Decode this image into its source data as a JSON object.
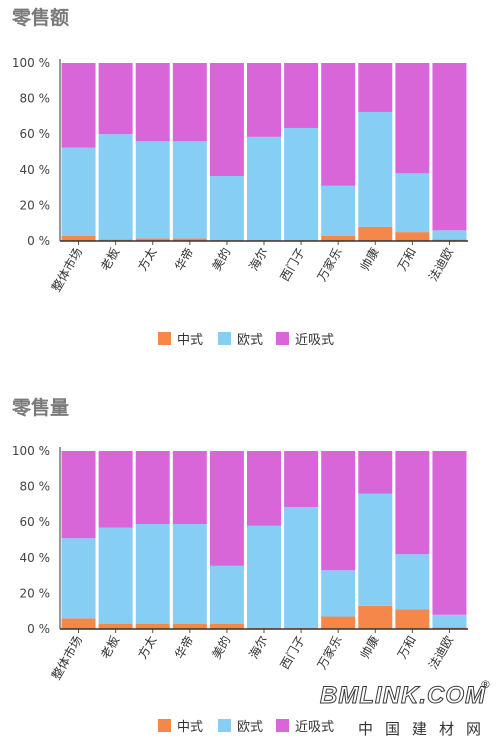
{
  "colors": {
    "zhongshi": "#F5874A",
    "oushi": "#87CEF5",
    "jinxishi": "#D866D8"
  },
  "watermark": {
    "logo": "BMLINK.COM",
    "registered": "®",
    "subtitle": "中国建材网"
  },
  "chart_data": [
    {
      "type": "bar",
      "stacked": true,
      "title": "零售额",
      "xlabel": "",
      "ylabel": "",
      "ylim": [
        0,
        100
      ],
      "yticks": [
        "0 %",
        "20 %",
        "40 %",
        "60 %",
        "80 %",
        "100 %"
      ],
      "categories": [
        "整体市场",
        "老板",
        "方太",
        "华帝",
        "美的",
        "海尔",
        "西门子",
        "万家乐",
        "帅康",
        "万和",
        "法迪欧"
      ],
      "legend_position": "bottom",
      "series": [
        {
          "name": "中式",
          "color": "#F5874A",
          "values": [
            3,
            1,
            1.5,
            1.5,
            0.5,
            0.5,
            0.5,
            3,
            8,
            5,
            1
          ]
        },
        {
          "name": "欧式",
          "color": "#87CEF5",
          "values": [
            49.5,
            59,
            54.5,
            54.5,
            36,
            58,
            63,
            28,
            64.5,
            33,
            5
          ]
        },
        {
          "name": "近吸式",
          "color": "#D866D8",
          "values": [
            47.5,
            40,
            44,
            44,
            63.5,
            41.5,
            36.5,
            69,
            27.5,
            62,
            94
          ]
        }
      ]
    },
    {
      "type": "bar",
      "stacked": true,
      "title": "零售量",
      "xlabel": "",
      "ylabel": "",
      "ylim": [
        0,
        100
      ],
      "yticks": [
        "0 %",
        "20 %",
        "40 %",
        "60 %",
        "80 %",
        "100 %"
      ],
      "categories": [
        "整体市场",
        "老板",
        "方太",
        "华帝",
        "美的",
        "海尔",
        "西门子",
        "万家乐",
        "帅康",
        "万和",
        "法迪欧"
      ],
      "legend_position": "bottom",
      "series": [
        {
          "name": "中式",
          "color": "#F5874A",
          "values": [
            6,
            3,
            3,
            3,
            3,
            0.5,
            0.5,
            7,
            13,
            11,
            1
          ]
        },
        {
          "name": "欧式",
          "color": "#87CEF5",
          "values": [
            45,
            54,
            56,
            56,
            32.5,
            57.5,
            68,
            26,
            63,
            31,
            7
          ]
        },
        {
          "name": "近吸式",
          "color": "#D866D8",
          "values": [
            49,
            43,
            41,
            41,
            64.5,
            42,
            31.5,
            67,
            24,
            58,
            92
          ]
        }
      ]
    }
  ]
}
